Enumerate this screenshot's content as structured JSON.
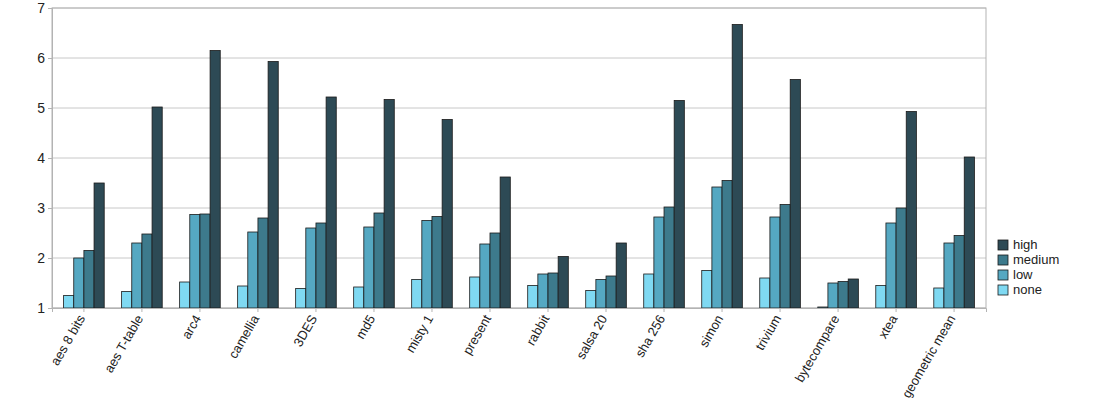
{
  "chart_data": {
    "type": "bar",
    "categories": [
      "aes 8 bits",
      "aes T-table",
      "arc4",
      "camellia",
      "3DES",
      "md5",
      "misty 1",
      "present",
      "rabbit",
      "salsa 20",
      "sha 256",
      "simon",
      "trivium",
      "bytecompare",
      "xtea",
      "geometric mean"
    ],
    "series": [
      {
        "name": "none",
        "color": "#7fd9f2",
        "values": [
          1.25,
          1.33,
          1.52,
          1.44,
          1.39,
          1.42,
          1.57,
          1.62,
          1.45,
          1.35,
          1.68,
          1.75,
          1.6,
          1.02,
          1.45,
          1.4
        ]
      },
      {
        "name": "low",
        "color": "#55a8c2",
        "values": [
          2.0,
          2.3,
          2.87,
          2.52,
          2.6,
          2.62,
          2.75,
          2.28,
          1.68,
          1.57,
          2.82,
          3.42,
          2.82,
          1.5,
          2.7,
          2.3
        ]
      },
      {
        "name": "medium",
        "color": "#3d7a8c",
        "values": [
          2.15,
          2.48,
          2.88,
          2.8,
          2.7,
          2.9,
          2.83,
          2.5,
          1.7,
          1.64,
          3.02,
          3.55,
          3.07,
          1.53,
          3.0,
          2.45
        ]
      },
      {
        "name": "high",
        "color": "#2d4a55",
        "values": [
          3.5,
          5.02,
          6.15,
          5.93,
          5.22,
          5.17,
          4.77,
          3.62,
          2.03,
          2.3,
          5.15,
          6.67,
          5.57,
          1.58,
          4.93,
          4.02
        ]
      }
    ],
    "ylim": [
      1,
      7
    ],
    "yticks": [
      1,
      2,
      3,
      4,
      5,
      6,
      7
    ],
    "grid": true,
    "legend": "right"
  }
}
